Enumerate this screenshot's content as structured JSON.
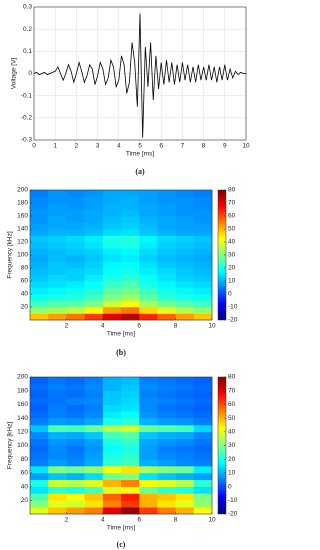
{
  "chart_data": [
    {
      "type": "line",
      "caption": "(a)",
      "x_label": "Time [ms]",
      "y_label": "Voltage [V]",
      "color": "#000000",
      "grid": true,
      "xlim": [
        0,
        10
      ],
      "ylim": [
        -0.3,
        0.3
      ],
      "xticks": [
        0,
        1,
        2,
        3,
        4,
        5,
        6,
        7,
        8,
        9,
        10
      ],
      "yticks": [
        -0.3,
        -0.2,
        -0.1,
        0,
        0.1,
        0.2,
        0.3
      ],
      "x": [
        0,
        0.125,
        0.25,
        0.375,
        0.5,
        0.625,
        0.75,
        0.875,
        1,
        1.125,
        1.25,
        1.375,
        1.5,
        1.625,
        1.75,
        1.875,
        2,
        2.125,
        2.25,
        2.375,
        2.5,
        2.625,
        2.75,
        2.875,
        3,
        3.125,
        3.25,
        3.375,
        3.5,
        3.625,
        3.75,
        3.875,
        4,
        4.125,
        4.25,
        4.375,
        4.5,
        4.625,
        4.75,
        4.875,
        5,
        5.125,
        5.25,
        5.375,
        5.5,
        5.625,
        5.75,
        5.875,
        6,
        6.125,
        6.25,
        6.375,
        6.5,
        6.625,
        6.75,
        6.875,
        7,
        7.125,
        7.25,
        7.375,
        7.5,
        7.625,
        7.75,
        7.875,
        8,
        8.125,
        8.25,
        8.375,
        8.5,
        8.625,
        8.75,
        8.875,
        9,
        9.125,
        9.25,
        9.375,
        9.5,
        9.625,
        9.75,
        9.875,
        10
      ],
      "values": [
        0,
        0.005,
        -0.005,
        0,
        0.005,
        -0.005,
        0,
        0.005,
        0.01,
        0.03,
        0,
        -0.03,
        0,
        0.04,
        0.01,
        -0.04,
        0,
        0.05,
        0.01,
        -0.04,
        -0.01,
        0.04,
        0.02,
        -0.05,
        -0.01,
        0.05,
        0.02,
        -0.05,
        -0.02,
        0.06,
        0.03,
        -0.06,
        -0.03,
        0.08,
        0.04,
        -0.09,
        -0.04,
        0.14,
        0.05,
        -0.15,
        0.27,
        -0.29,
        0.12,
        -0.06,
        0.14,
        -0.12,
        0.08,
        -0.07,
        0.05,
        -0.05,
        0.06,
        -0.04,
        0.05,
        -0.05,
        0.04,
        -0.04,
        0.05,
        -0.03,
        0.04,
        -0.04,
        0.03,
        -0.04,
        0.04,
        -0.03,
        0.03,
        -0.03,
        0.04,
        -0.03,
        0.03,
        -0.04,
        0.03,
        -0.03,
        0.04,
        -0.03,
        0.02,
        -0.02,
        0.01,
        -0.005,
        0.005,
        0,
        0
      ]
    },
    {
      "type": "heatmap",
      "caption": "(b)",
      "x_label": "Time [ms]",
      "y_label": "Frequency [kHz]",
      "colormap": "jet",
      "xlim": [
        0,
        10
      ],
      "ylim": [
        0,
        200
      ],
      "xticks": [
        2,
        4,
        6,
        8,
        10
      ],
      "yticks": [
        20,
        40,
        60,
        80,
        100,
        120,
        140,
        160,
        180,
        200
      ],
      "zlim": [
        -20,
        80
      ],
      "zticks": [
        -20,
        -10,
        0,
        10,
        20,
        30,
        40,
        50,
        60,
        70,
        80
      ],
      "x": [
        0.5,
        1.5,
        2.5,
        3.5,
        4.5,
        5.5,
        6.5,
        7.5,
        8.5,
        9.5
      ],
      "y": [
        5,
        15,
        25,
        35,
        45,
        55,
        65,
        75,
        85,
        95,
        105,
        115,
        125,
        135,
        145,
        155,
        165,
        175,
        185,
        195
      ],
      "z": [
        [
          48,
          52,
          56,
          62,
          70,
          74,
          64,
          58,
          52,
          48
        ],
        [
          32,
          34,
          36,
          42,
          52,
          56,
          46,
          40,
          35,
          32
        ],
        [
          24,
          26,
          27,
          30,
          38,
          42,
          34,
          29,
          26,
          24
        ],
        [
          19,
          20,
          21,
          24,
          30,
          33,
          27,
          22,
          20,
          19
        ],
        [
          16,
          17,
          18,
          20,
          26,
          28,
          23,
          19,
          17,
          16
        ],
        [
          14,
          15,
          16,
          18,
          23,
          25,
          20,
          17,
          15,
          14
        ],
        [
          12,
          14,
          13,
          16,
          20,
          22,
          18,
          15,
          13,
          12
        ],
        [
          11,
          12,
          13,
          14,
          18,
          19,
          16,
          14,
          12,
          11
        ],
        [
          10,
          12,
          11,
          13,
          17,
          18,
          15,
          12,
          11,
          10
        ],
        [
          9,
          11,
          10,
          12,
          15,
          16,
          13,
          11,
          10,
          9
        ],
        [
          10,
          11,
          12,
          13,
          16,
          17,
          14,
          12,
          11,
          10
        ],
        [
          11,
          12,
          13,
          15,
          19,
          20,
          16,
          13,
          12,
          11
        ],
        [
          12,
          13,
          14,
          16,
          20,
          21,
          17,
          14,
          13,
          12
        ],
        [
          9,
          10,
          10,
          11,
          14,
          15,
          12,
          10,
          9,
          9
        ],
        [
          8,
          9,
          9,
          10,
          12,
          13,
          11,
          9,
          8,
          8
        ],
        [
          7,
          9,
          8,
          9,
          11,
          12,
          10,
          9,
          8,
          7
        ],
        [
          7,
          8,
          8,
          9,
          10,
          11,
          9,
          8,
          7,
          7
        ],
        [
          6,
          8,
          7,
          8,
          10,
          10,
          9,
          8,
          7,
          6
        ],
        [
          6,
          7,
          7,
          8,
          9,
          10,
          8,
          7,
          7,
          6
        ],
        [
          5,
          7,
          6,
          7,
          9,
          9,
          8,
          7,
          6,
          5
        ]
      ]
    },
    {
      "type": "heatmap",
      "caption": "(c)",
      "x_label": "Time [ms]",
      "y_label": "Frequency [kHz]",
      "colormap": "jet",
      "xlim": [
        0,
        10
      ],
      "ylim": [
        0,
        200
      ],
      "xticks": [
        2,
        4,
        6,
        8,
        10
      ],
      "yticks": [
        20,
        40,
        60,
        80,
        100,
        120,
        140,
        160,
        180,
        200
      ],
      "zlim": [
        -20,
        80
      ],
      "zticks": [
        -20,
        -10,
        0,
        10,
        20,
        30,
        40,
        50,
        60,
        70,
        80
      ],
      "x": [
        0.5,
        1.5,
        2.5,
        3.5,
        4.5,
        5.5,
        6.5,
        7.5,
        8.5,
        9.5
      ],
      "y": [
        5,
        15,
        25,
        35,
        45,
        55,
        65,
        75,
        85,
        95,
        105,
        115,
        125,
        135,
        145,
        155,
        165,
        175,
        185,
        195
      ],
      "z": [
        [
          40,
          48,
          52,
          55,
          70,
          78,
          62,
          55,
          50,
          42
        ],
        [
          30,
          40,
          38,
          45,
          55,
          62,
          50,
          45,
          40,
          32
        ],
        [
          25,
          45,
          42,
          48,
          58,
          65,
          50,
          48,
          45,
          30
        ],
        [
          15,
          22,
          20,
          25,
          40,
          42,
          28,
          22,
          20,
          15
        ],
        [
          20,
          38,
          36,
          40,
          50,
          55,
          42,
          40,
          36,
          22
        ],
        [
          8,
          12,
          10,
          14,
          28,
          30,
          15,
          12,
          10,
          8
        ],
        [
          15,
          30,
          28,
          32,
          42,
          45,
          34,
          30,
          28,
          16
        ],
        [
          5,
          8,
          6,
          9,
          22,
          24,
          10,
          8,
          6,
          5
        ],
        [
          4,
          6,
          5,
          8,
          20,
          22,
          8,
          6,
          5,
          4
        ],
        [
          3,
          6,
          4,
          7,
          18,
          20,
          8,
          5,
          4,
          3
        ],
        [
          4,
          7,
          6,
          8,
          20,
          22,
          9,
          7,
          6,
          4
        ],
        [
          6,
          10,
          9,
          12,
          24,
          26,
          12,
          10,
          9,
          6
        ],
        [
          12,
          25,
          24,
          28,
          35,
          38,
          28,
          26,
          24,
          14
        ],
        [
          5,
          8,
          7,
          9,
          20,
          22,
          10,
          8,
          7,
          5
        ],
        [
          3,
          5,
          4,
          6,
          16,
          18,
          7,
          5,
          4,
          3
        ],
        [
          2,
          5,
          3,
          5,
          14,
          15,
          6,
          4,
          3,
          2
        ],
        [
          3,
          4,
          5,
          6,
          12,
          14,
          6,
          5,
          4,
          3
        ],
        [
          2,
          4,
          3,
          5,
          12,
          13,
          5,
          4,
          3,
          2
        ],
        [
          3,
          5,
          4,
          6,
          10,
          12,
          6,
          5,
          4,
          3
        ],
        [
          2,
          4,
          3,
          5,
          10,
          11,
          5,
          4,
          3,
          2
        ]
      ]
    }
  ]
}
